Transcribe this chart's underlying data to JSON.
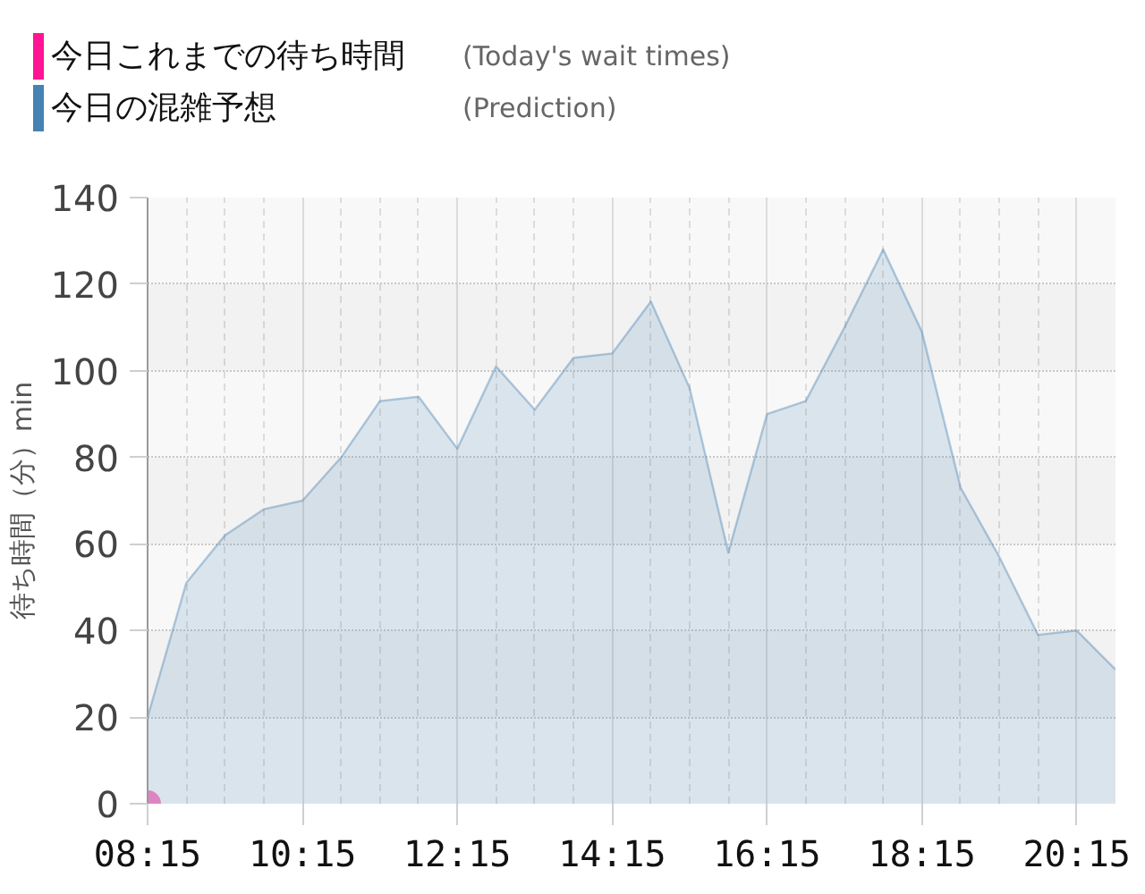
{
  "chart_data": {
    "type": "area",
    "ylabel": "待ち時間（分）min",
    "x": [
      8.25,
      8.75,
      9.25,
      9.75,
      10.25,
      10.75,
      11.25,
      11.75,
      12.25,
      12.75,
      13.25,
      13.75,
      14.25,
      14.75,
      15.25,
      15.75,
      16.25,
      16.75,
      17.25,
      17.75,
      18.25,
      18.75,
      19.25,
      19.75,
      20.25,
      20.75
    ],
    "xlim": [
      8.25,
      20.75
    ],
    "xticks": [
      {
        "value": 8.25,
        "label": "08:15"
      },
      {
        "value": 8.75,
        "label": null
      },
      {
        "value": 9.25,
        "label": null
      },
      {
        "value": 9.75,
        "label": null
      },
      {
        "value": 10.25,
        "label": "10:15"
      },
      {
        "value": 10.75,
        "label": null
      },
      {
        "value": 11.25,
        "label": null
      },
      {
        "value": 11.75,
        "label": null
      },
      {
        "value": 12.25,
        "label": "12:15"
      },
      {
        "value": 12.75,
        "label": null
      },
      {
        "value": 13.25,
        "label": null
      },
      {
        "value": 13.75,
        "label": null
      },
      {
        "value": 14.25,
        "label": "14:15"
      },
      {
        "value": 14.75,
        "label": null
      },
      {
        "value": 15.25,
        "label": null
      },
      {
        "value": 15.75,
        "label": null
      },
      {
        "value": 16.25,
        "label": "16:15"
      },
      {
        "value": 16.75,
        "label": null
      },
      {
        "value": 17.25,
        "label": null
      },
      {
        "value": 17.75,
        "label": null
      },
      {
        "value": 18.25,
        "label": "18:15"
      },
      {
        "value": 18.75,
        "label": null
      },
      {
        "value": 19.25,
        "label": null
      },
      {
        "value": 19.75,
        "label": null
      },
      {
        "value": 20.25,
        "label": "20:15"
      },
      {
        "value": 20.75,
        "label": null
      }
    ],
    "ylim": [
      0,
      140
    ],
    "yticks": [
      0,
      20,
      40,
      60,
      80,
      100,
      120,
      140
    ],
    "grid": true,
    "legend": "top left",
    "annotations": [
      "(Today's wait times)",
      "(Prediction)"
    ],
    "series": [
      {
        "name": "今日これまでの待ち時間",
        "type": "scatter",
        "marker": "circle",
        "color": "#ff1493",
        "x": [
          8.25
        ],
        "values": [
          0
        ]
      },
      {
        "name": "今日の混雑予想",
        "color": "#4682b4",
        "values": [
          20,
          51,
          62,
          68,
          70,
          80,
          93,
          94,
          82,
          101,
          91,
          103,
          104,
          116,
          96,
          58,
          90,
          93,
          110,
          128,
          109,
          73,
          57,
          39,
          40,
          31
        ]
      }
    ]
  }
}
